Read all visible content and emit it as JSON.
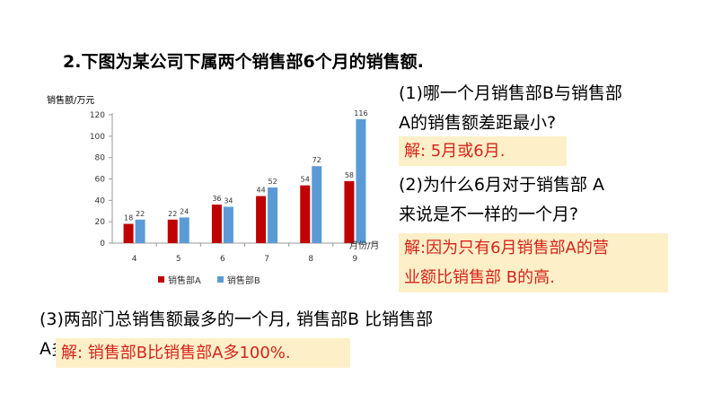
{
  "question": {
    "title": "2.下图为某公司下属两个销售部6个月的销售额.",
    "q1_line1": "(1)哪一个月销售部B与销售部",
    "q1_line2": "A的销售额差距最小?",
    "a1": "解: 5月或6月.",
    "q2_line1": "(2)为什么6月对于销售部 A",
    "q2_line2": "来说是不一样的一个月?",
    "a2_line1": "解:因为只有6月销售部A的营",
    "a2_line2": "业额比销售部 B的高.",
    "q3_line1": "(3)两部门总销售额最多的一个月, 销售部B 比销售部",
    "q3_line2": "A多百分之几?",
    "a3": "解: 销售部B比销售部A多100%."
  },
  "chart_data": {
    "type": "bar",
    "ylabel": "销售额/万元",
    "xlabel": "月份/月",
    "categories": [
      "4",
      "5",
      "6",
      "7",
      "8",
      "9"
    ],
    "ylim": [
      0,
      120
    ],
    "yticks": [
      0,
      20,
      40,
      60,
      80,
      100,
      120
    ],
    "grid": false,
    "legend": "bottom",
    "series": [
      {
        "name": "销售部A",
        "color": "#c00000",
        "values": [
          18,
          22,
          36,
          44,
          54,
          58
        ]
      },
      {
        "name": "销售部B",
        "color": "#5b9bd5",
        "values": [
          22,
          24,
          34,
          52,
          72,
          116
        ]
      }
    ]
  }
}
